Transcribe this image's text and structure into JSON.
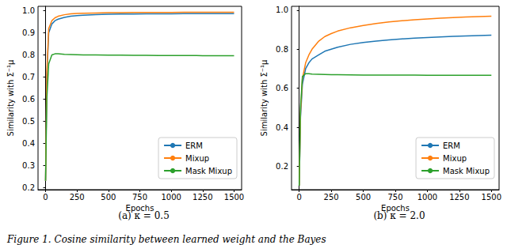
{
  "chart_data": [
    {
      "type": "line",
      "title": "(a) κ = 0.5",
      "x_label": "Epochs",
      "y_label": "Similarity with Σ⁻¹μ",
      "x": [
        0,
        10,
        25,
        50,
        75,
        100,
        150,
        200,
        250,
        300,
        400,
        500,
        600,
        700,
        800,
        900,
        1000,
        1100,
        1200,
        1300,
        1400,
        1500
      ],
      "series": [
        {
          "name": "ERM",
          "color": "#1f77b4",
          "values": [
            0.23,
            0.7,
            0.9,
            0.94,
            0.955,
            0.962,
            0.97,
            0.975,
            0.978,
            0.98,
            0.982,
            0.984,
            0.985,
            0.985,
            0.986,
            0.986,
            0.986,
            0.987,
            0.987,
            0.987,
            0.987,
            0.987
          ]
        },
        {
          "name": "Mixup",
          "color": "#ff7f0e",
          "values": [
            0.23,
            0.72,
            0.92,
            0.955,
            0.968,
            0.975,
            0.982,
            0.986,
            0.988,
            0.989,
            0.99,
            0.991,
            0.991,
            0.992,
            0.992,
            0.992,
            0.992,
            0.993,
            0.993,
            0.993,
            0.993,
            0.993
          ]
        },
        {
          "name": "Mask Mixup",
          "color": "#2ca02c",
          "values": [
            0.23,
            0.6,
            0.76,
            0.8,
            0.805,
            0.805,
            0.803,
            0.802,
            0.801,
            0.8,
            0.8,
            0.799,
            0.799,
            0.798,
            0.798,
            0.797,
            0.797,
            0.797,
            0.797,
            0.796,
            0.796,
            0.796
          ]
        }
      ],
      "xlim": [
        -60,
        1560
      ],
      "xticks": [
        0,
        250,
        500,
        750,
        1000,
        1250,
        1500
      ],
      "ylim": [
        0.19,
        1.02
      ],
      "yticks": [
        0.2,
        0.3,
        0.4,
        0.5,
        0.6,
        0.7,
        0.8,
        0.9,
        {
          "value": 1,
          "label": "1.0"
        }
      ],
      "legend": "lower right",
      "grid": false
    },
    {
      "type": "line",
      "title": "(b) κ = 2.0",
      "x_label": "Epochs",
      "y_label": "Similarity with Σ⁻¹μ",
      "x": [
        0,
        10,
        25,
        50,
        75,
        100,
        150,
        200,
        250,
        300,
        400,
        500,
        600,
        700,
        800,
        900,
        1000,
        1100,
        1200,
        1300,
        1400,
        1500
      ],
      "series": [
        {
          "name": "ERM",
          "color": "#1f77b4",
          "values": [
            0.1,
            0.45,
            0.62,
            0.7,
            0.73,
            0.75,
            0.77,
            0.79,
            0.8,
            0.81,
            0.825,
            0.835,
            0.842,
            0.848,
            0.853,
            0.857,
            0.86,
            0.863,
            0.866,
            0.868,
            0.87,
            0.872
          ]
        },
        {
          "name": "Mixup",
          "color": "#ff7f0e",
          "values": [
            0.1,
            0.47,
            0.65,
            0.73,
            0.77,
            0.8,
            0.84,
            0.865,
            0.88,
            0.893,
            0.91,
            0.922,
            0.932,
            0.94,
            0.946,
            0.951,
            0.955,
            0.959,
            0.962,
            0.965,
            0.967,
            0.969
          ]
        },
        {
          "name": "Mask Mixup",
          "color": "#2ca02c",
          "values": [
            0.1,
            0.5,
            0.66,
            0.675,
            0.675,
            0.673,
            0.672,
            0.671,
            0.67,
            0.67,
            0.669,
            0.668,
            0.668,
            0.667,
            0.667,
            0.667,
            0.666,
            0.666,
            0.666,
            0.666,
            0.666,
            0.666
          ]
        }
      ],
      "xlim": [
        -60,
        1560
      ],
      "xticks": [
        0,
        250,
        500,
        750,
        1000,
        1250,
        1500
      ],
      "ylim": [
        0.08,
        1.02
      ],
      "yticks": [
        0.2,
        0.4,
        0.6,
        0.8,
        {
          "value": 1,
          "label": "1.0"
        }
      ],
      "legend": "lower right",
      "grid": false
    }
  ],
  "caption": "Figure 1. Cosine similarity between learned weight and the Bayes"
}
